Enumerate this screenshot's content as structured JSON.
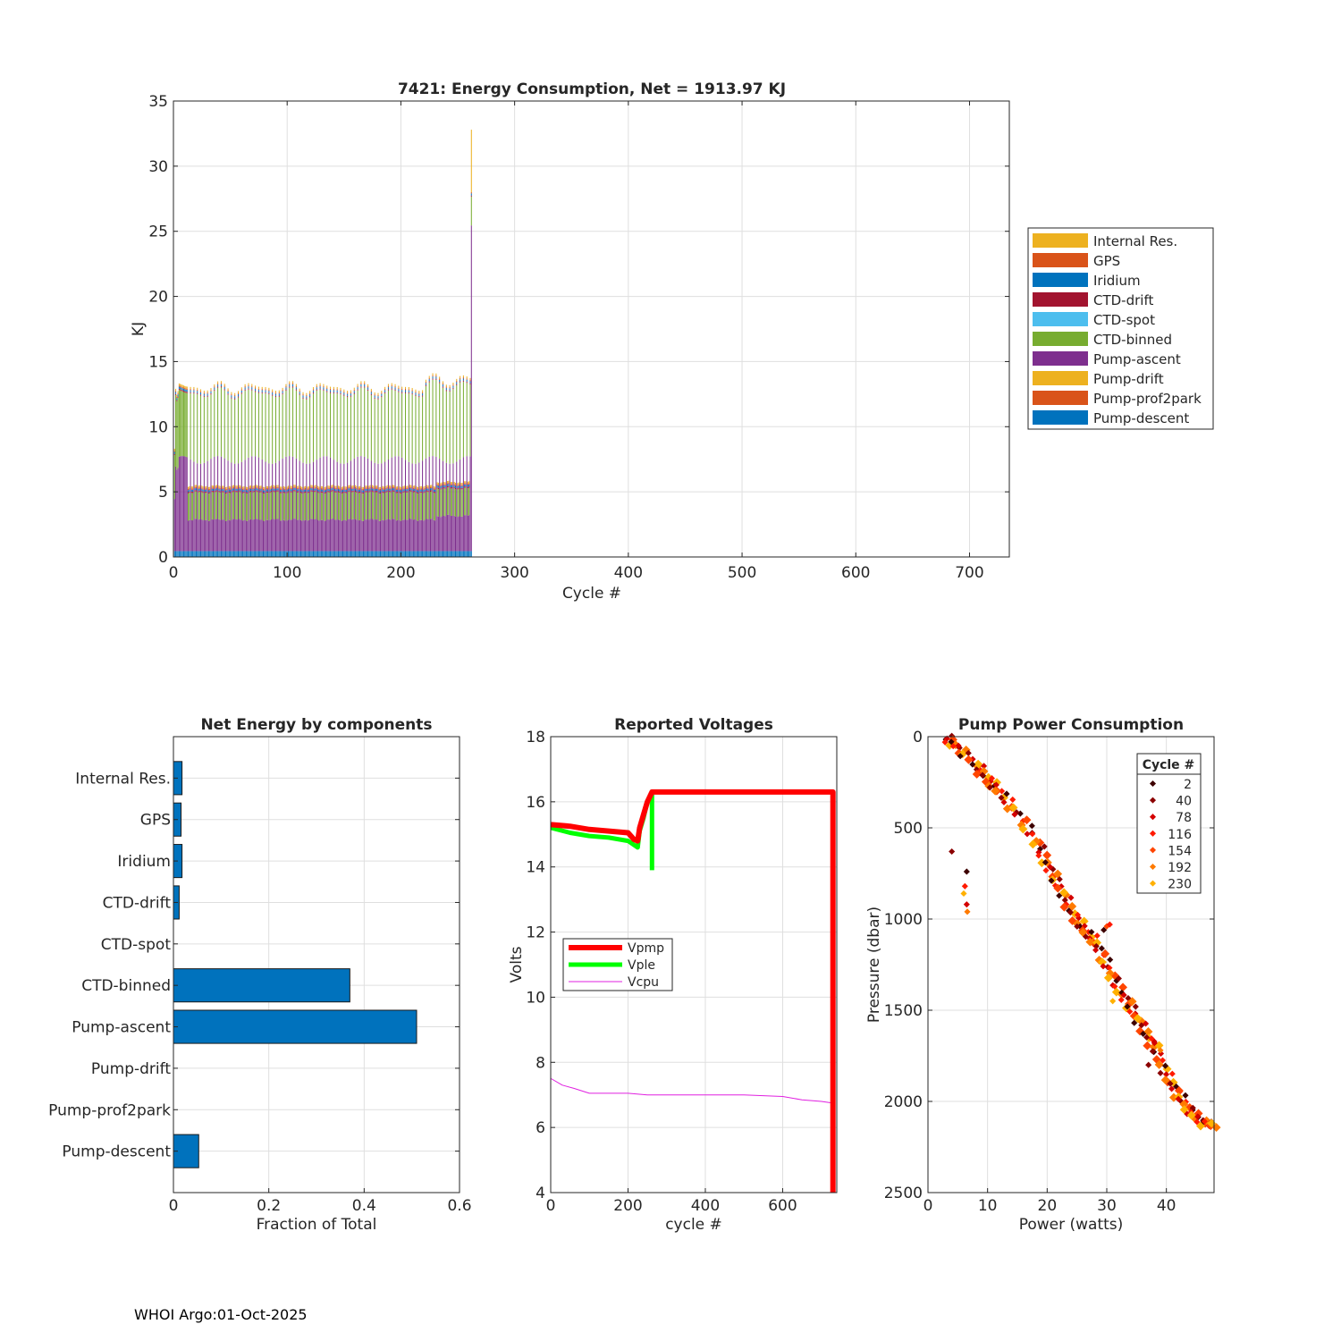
{
  "footer": "WHOI Argo:01-Oct-2025",
  "chart_data": [
    {
      "type": "bar",
      "stacked": true,
      "title": "7421: Energy Consumption,  Net = 1913.97 KJ",
      "xlabel": "Cycle #",
      "ylabel": "KJ",
      "xlim": [
        0,
        735
      ],
      "ylim": [
        0,
        35
      ],
      "xticks": [
        0,
        100,
        200,
        300,
        400,
        500,
        600,
        700
      ],
      "yticks": [
        0,
        5,
        10,
        15,
        20,
        25,
        30,
        35
      ],
      "grid": true,
      "legend_position": "right",
      "legend": [
        {
          "name": "Internal Res.",
          "color": "#EDB120"
        },
        {
          "name": "GPS",
          "color": "#D95319"
        },
        {
          "name": "Iridium",
          "color": "#0072BD"
        },
        {
          "name": "CTD-drift",
          "color": "#A2142F"
        },
        {
          "name": "CTD-spot",
          "color": "#4DBEEE"
        },
        {
          "name": "CTD-binned",
          "color": "#77AC30"
        },
        {
          "name": "Pump-ascent",
          "color": "#7E2F8E"
        },
        {
          "name": "Pump-drift",
          "color": "#EDB120"
        },
        {
          "name": "Pump-prof2park",
          "color": "#D95319"
        },
        {
          "name": "Pump-descent",
          "color": "#0072BD"
        }
      ],
      "stack_order": [
        "Pump-descent",
        "Pump-ascent",
        "CTD-binned",
        "CTD-drift",
        "Iridium",
        "GPS",
        "Internal Res."
      ],
      "cycles_range": [
        1,
        262
      ],
      "typical_cycle_kj": {
        "Pump-descent": 0.45,
        "Pump-ascent": 2.4,
        "CTD-binned": 2.1,
        "CTD-drift": 0.1,
        "Iridium": 0.15,
        "GPS": 0.1,
        "Internal Res.": 0.15
      },
      "every_third_cycle_kj": {
        "Pump-ascent": 7.0,
        "CTD-binned": 5.1
      },
      "early_cycles_total_kj": [
        8,
        13,
        12.5,
        12.8
      ],
      "final_cycle": {
        "cycle": 262,
        "Pump-ascent": 25,
        "CTD-binned": 2.2,
        "Internal Res.": 4.8,
        "total": 32
      }
    },
    {
      "type": "bar",
      "orientation": "horizontal",
      "title": "Net Energy by components",
      "xlabel": "Fraction of Total",
      "xlim": [
        0,
        0.6
      ],
      "xticks": [
        0,
        0.2,
        0.4,
        0.6
      ],
      "grid": true,
      "color": "#0072BD",
      "categories": [
        "Internal Res.",
        "GPS",
        "Iridium",
        "CTD-drift",
        "CTD-spot",
        "CTD-binned",
        "Pump-ascent",
        "Pump-drift",
        "Pump-prof2park",
        "Pump-descent"
      ],
      "values": [
        0.018,
        0.016,
        0.018,
        0.012,
        0,
        0.37,
        0.51,
        0,
        0,
        0.053
      ]
    },
    {
      "type": "line",
      "title": "Reported Voltages",
      "xlabel": "cycle #",
      "ylabel": "Volts",
      "xlim": [
        0,
        740
      ],
      "ylim": [
        4,
        18
      ],
      "xticks": [
        0,
        200,
        400,
        600
      ],
      "yticks": [
        4,
        6,
        8,
        10,
        12,
        14,
        16,
        18
      ],
      "grid": true,
      "legend_position": "middle-left",
      "series": [
        {
          "name": "Vpmp",
          "color": "#FF0000",
          "width": 6,
          "x": [
            1,
            50,
            100,
            150,
            200,
            215,
            225,
            230,
            240,
            250,
            262,
            300,
            400,
            500,
            600,
            730,
            730
          ],
          "y": [
            15.3,
            15.25,
            15.15,
            15.1,
            15.05,
            14.85,
            14.8,
            15.2,
            15.6,
            16.0,
            16.3,
            16.3,
            16.3,
            16.3,
            16.3,
            16.3,
            4
          ]
        },
        {
          "name": "Vple",
          "color": "#00FF00",
          "width": 5,
          "x": [
            1,
            50,
            100,
            150,
            200,
            225,
            230,
            240,
            250,
            262,
            262
          ],
          "y": [
            15.2,
            15.05,
            14.95,
            14.9,
            14.8,
            14.6,
            15.1,
            15.5,
            16.0,
            16.2,
            13.9
          ]
        },
        {
          "name": "Vcpu",
          "color": "#E020E0",
          "width": 1,
          "x": [
            1,
            30,
            60,
            100,
            150,
            200,
            250,
            300,
            400,
            500,
            600,
            650,
            700,
            728,
            730
          ],
          "y": [
            7.5,
            7.3,
            7.2,
            7.05,
            7.05,
            7.05,
            7.0,
            7.0,
            7.0,
            7.0,
            6.95,
            6.85,
            6.8,
            6.75,
            4
          ]
        }
      ]
    },
    {
      "type": "scatter",
      "title": "Pump Power Consumption",
      "xlabel": "Power (watts)",
      "ylabel": "Pressure (dbar)",
      "xlim": [
        0,
        48
      ],
      "ylim": [
        2500,
        0
      ],
      "xticks": [
        0,
        10,
        20,
        30,
        40
      ],
      "yticks": [
        0,
        500,
        1000,
        1500,
        2000,
        2500
      ],
      "grid": true,
      "legend_title": "Cycle #",
      "legend_position": "top-right",
      "series": [
        {
          "name": "2",
          "color": "#3D0000"
        },
        {
          "name": "40",
          "color": "#8B0000"
        },
        {
          "name": "78",
          "color": "#D40000"
        },
        {
          "name": "116",
          "color": "#FF1A00"
        },
        {
          "name": "154",
          "color": "#FF4500"
        },
        {
          "name": "192",
          "color": "#FF7A00"
        },
        {
          "name": "230",
          "color": "#FFB000"
        }
      ],
      "trend_points": [
        [
          3,
          0
        ],
        [
          5,
          60
        ],
        [
          8,
          150
        ],
        [
          10,
          230
        ],
        [
          12,
          300
        ],
        [
          15,
          420
        ],
        [
          18,
          560
        ],
        [
          20,
          700
        ],
        [
          22,
          820
        ],
        [
          24,
          950
        ],
        [
          26,
          1050
        ],
        [
          28,
          1120
        ],
        [
          30,
          1250
        ],
        [
          32,
          1380
        ],
        [
          34,
          1480
        ],
        [
          36,
          1600
        ],
        [
          38,
          1700
        ],
        [
          40,
          1850
        ],
        [
          42,
          1960
        ],
        [
          44,
          2050
        ],
        [
          46,
          2110
        ],
        [
          48,
          2130
        ]
      ],
      "outliers": [
        [
          6.5,
          740
        ],
        [
          6.2,
          820
        ],
        [
          6.0,
          860
        ],
        [
          6.5,
          920
        ],
        [
          6.6,
          960
        ],
        [
          4,
          630
        ],
        [
          30,
          1040
        ],
        [
          29.5,
          1060
        ],
        [
          30.5,
          1030
        ],
        [
          31,
          1450
        ],
        [
          38,
          1680
        ],
        [
          39,
          1720
        ],
        [
          37,
          1800
        ]
      ]
    }
  ]
}
